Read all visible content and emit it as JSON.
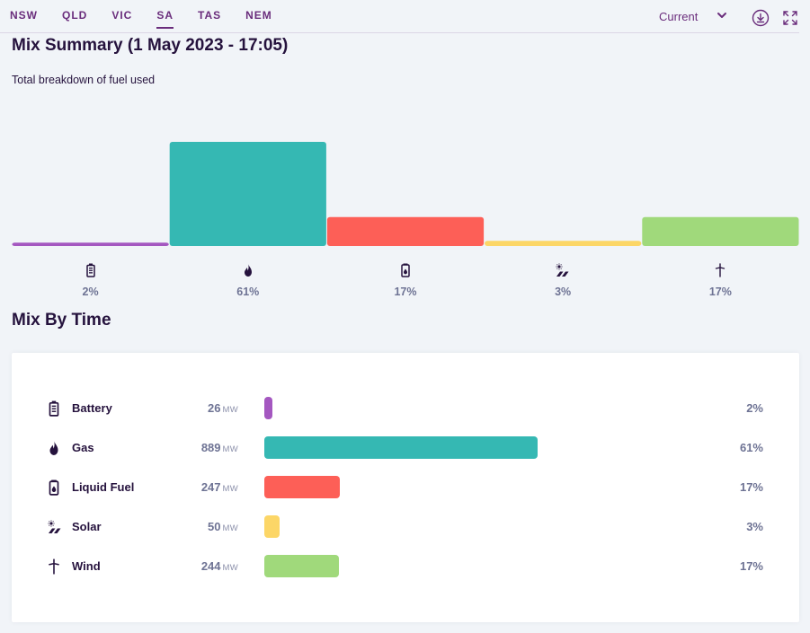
{
  "nav": {
    "tabs": [
      {
        "label": "NSW",
        "active": false
      },
      {
        "label": "QLD",
        "active": false
      },
      {
        "label": "VIC",
        "active": false
      },
      {
        "label": "SA",
        "active": true
      },
      {
        "label": "TAS",
        "active": false
      },
      {
        "label": "NEM",
        "active": false
      }
    ],
    "period": "Current",
    "icons": {
      "dropdown": "chevron-down-icon",
      "download": "download-icon",
      "fullscreen": "fullscreen-icon"
    }
  },
  "summary": {
    "title": "Mix Summary (1 May 2023 - 17:05)",
    "subtitle": "Total breakdown of fuel used"
  },
  "mix_by_time": {
    "title": "Mix By Time",
    "unit": "MW",
    "rows": [
      {
        "name": "Battery",
        "mw": "26",
        "pct": "2%",
        "icon": "battery-icon"
      },
      {
        "name": "Gas",
        "mw": "889",
        "pct": "61%",
        "icon": "flame-icon"
      },
      {
        "name": "Liquid Fuel",
        "mw": "247",
        "pct": "17%",
        "icon": "fuel-can-icon"
      },
      {
        "name": "Solar",
        "mw": "50",
        "pct": "3%",
        "icon": "solar-panel-icon"
      },
      {
        "name": "Wind",
        "mw": "244",
        "pct": "17%",
        "icon": "wind-turbine-icon"
      }
    ]
  },
  "chart_data": [
    {
      "type": "bar",
      "title": "Mix Summary (1 May 2023 - 17:05)",
      "subtitle": "Total breakdown of fuel used",
      "categories": [
        "Battery",
        "Gas",
        "Liquid Fuel",
        "Solar",
        "Wind"
      ],
      "values": [
        2,
        61,
        17,
        3,
        17
      ],
      "value_labels": [
        "2%",
        "61%",
        "17%",
        "3%",
        "17%"
      ],
      "unit": "%",
      "grid": false,
      "colors": [
        "#a457c0",
        "#35b8b3",
        "#fd5f57",
        "#fcd667",
        "#a0d97b"
      ]
    },
    {
      "type": "bar",
      "orientation": "horizontal",
      "title": "Mix By Time",
      "categories": [
        "Battery",
        "Gas",
        "Liquid Fuel",
        "Solar",
        "Wind"
      ],
      "values": [
        26,
        889,
        247,
        50,
        244
      ],
      "unit": "MW",
      "percent_labels": [
        "2%",
        "61%",
        "17%",
        "3%",
        "17%"
      ],
      "grid": false,
      "colors": [
        "#a457c0",
        "#35b8b3",
        "#fd5f57",
        "#fcd667",
        "#a0d97b"
      ]
    }
  ]
}
